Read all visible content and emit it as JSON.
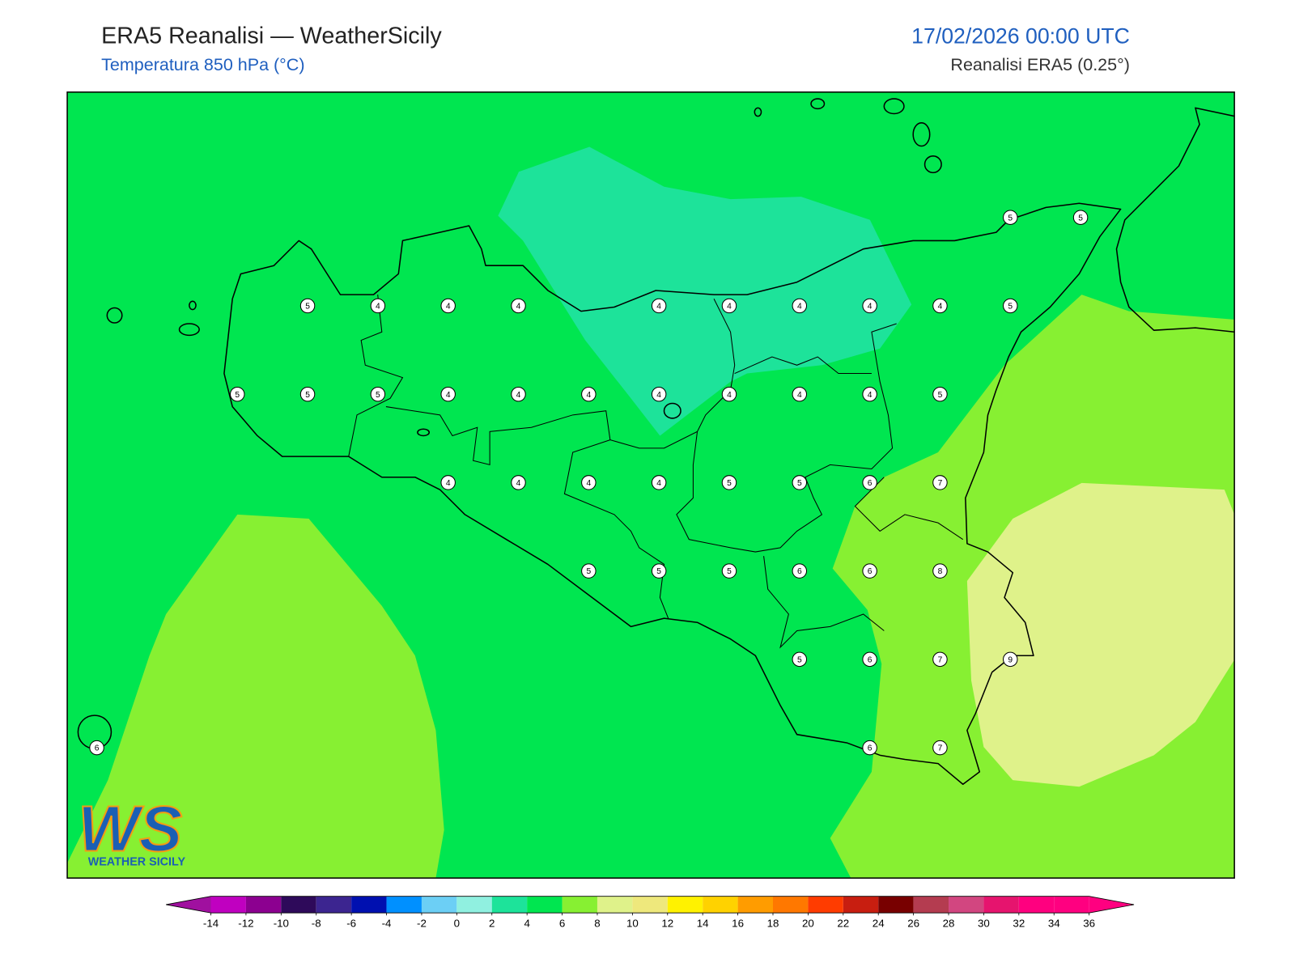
{
  "map": {
    "title": "ERA5 Reanalisi — WeatherSicily",
    "subtitle": "Temperatura 850 hPa (°C)",
    "datetime": "17/02/2026 00:00 UTC",
    "source": "Reanalisi ERA5 (0.25°)",
    "point_values": [
      5,
      5,
      5,
      4,
      4,
      4,
      4,
      4,
      4,
      4,
      4,
      5,
      5,
      5,
      5,
      4,
      4,
      4,
      4,
      4,
      4,
      4,
      5,
      4,
      4,
      4,
      4,
      5,
      5,
      6,
      7,
      5,
      5,
      5,
      6,
      6,
      8,
      5,
      6,
      7,
      9,
      6,
      6,
      7
    ],
    "colorbar": {
      "ticks": [
        -14,
        -12,
        -10,
        -8,
        -6,
        -4,
        -2,
        0,
        2,
        4,
        6,
        8,
        10,
        12,
        14,
        16,
        18,
        20,
        22,
        24,
        26,
        28,
        30,
        32,
        34,
        36
      ],
      "colors": [
        "#a0109f",
        "#c000c0",
        "#8c0090",
        "#2e0a5a",
        "#3c2590",
        "#0010b0",
        "#0090ff",
        "#6ccff5",
        "#90f0e0",
        "#1de39a",
        "#00e650",
        "#87f032",
        "#dff28a",
        "#eee87c",
        "#fff200",
        "#ffd200",
        "#ff9c00",
        "#ff7800",
        "#ff3c00",
        "#c81e10",
        "#780000",
        "#b43c50",
        "#d24680",
        "#e6146e",
        "#ff007f",
        "#ff0080"
      ]
    },
    "logo": {
      "initials": "WS",
      "text": "WEATHER SICILY"
    }
  }
}
